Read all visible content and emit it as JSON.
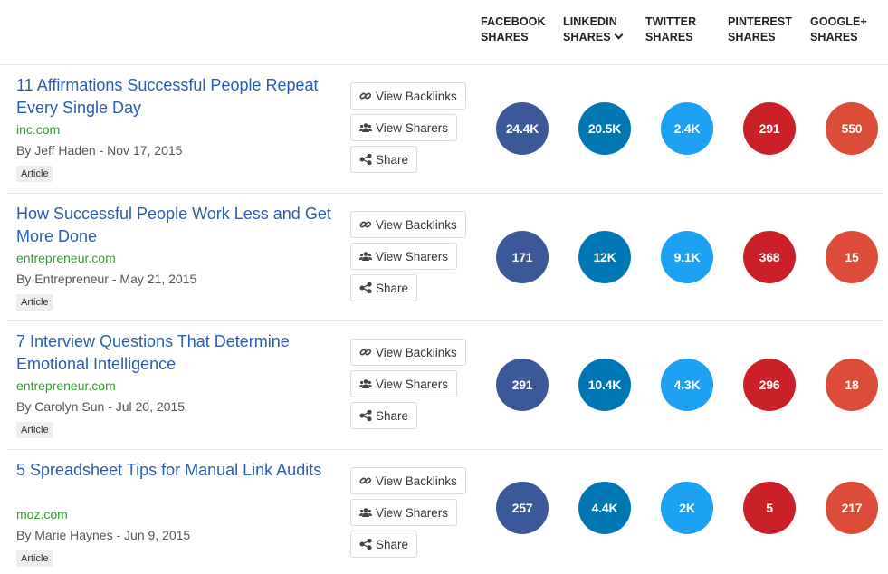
{
  "columns": [
    {
      "line1": "FACEBOOK",
      "line2": "SHARES",
      "color": "#3b5998"
    },
    {
      "line1": "LINKEDIN",
      "line2": "SHARES",
      "color": "#0077b5",
      "sorted": true
    },
    {
      "line1": "TWITTER",
      "line2": "SHARES",
      "color": "#1da1f2"
    },
    {
      "line1": "PINTEREST",
      "line2": "SHARES",
      "color": "#cb2027"
    },
    {
      "line1": "GOOGLE+",
      "line2": "SHARES",
      "color": "#dd4b39"
    }
  ],
  "buttons": {
    "backlinks": "View Backlinks",
    "sharers": "View Sharers",
    "share": "Share"
  },
  "articles": [
    {
      "title": "11 Affirmations Successful People Repeat Every Single Day",
      "domain": "inc.com",
      "author": "By Jeff Haden",
      "date": "Nov 17, 2015",
      "type": "Article",
      "shares": [
        "24.4K",
        "20.5K",
        "2.4K",
        "291",
        "550"
      ]
    },
    {
      "title": "How Successful People Work Less and Get More Done",
      "domain": "entrepreneur.com",
      "author": "By Entrepreneur",
      "date": "May 21, 2015",
      "type": "Article",
      "shares": [
        "171",
        "12K",
        "9.1K",
        "368",
        "15"
      ]
    },
    {
      "title": "7 Interview Questions That Determine Emotional Intelligence",
      "domain": "entrepreneur.com",
      "author": "By Carolyn Sun",
      "date": "Jul 20, 2015",
      "type": "Article",
      "shares": [
        "291",
        "10.4K",
        "4.3K",
        "296",
        "18"
      ]
    },
    {
      "title": "5 Spreadsheet Tips for Manual Link Audits",
      "domain": "moz.com",
      "author": "By Marie Haynes",
      "date": "Jun 9, 2015",
      "type": "Article",
      "shares": [
        "257",
        "4.4K",
        "2K",
        "5",
        "217"
      ]
    }
  ]
}
